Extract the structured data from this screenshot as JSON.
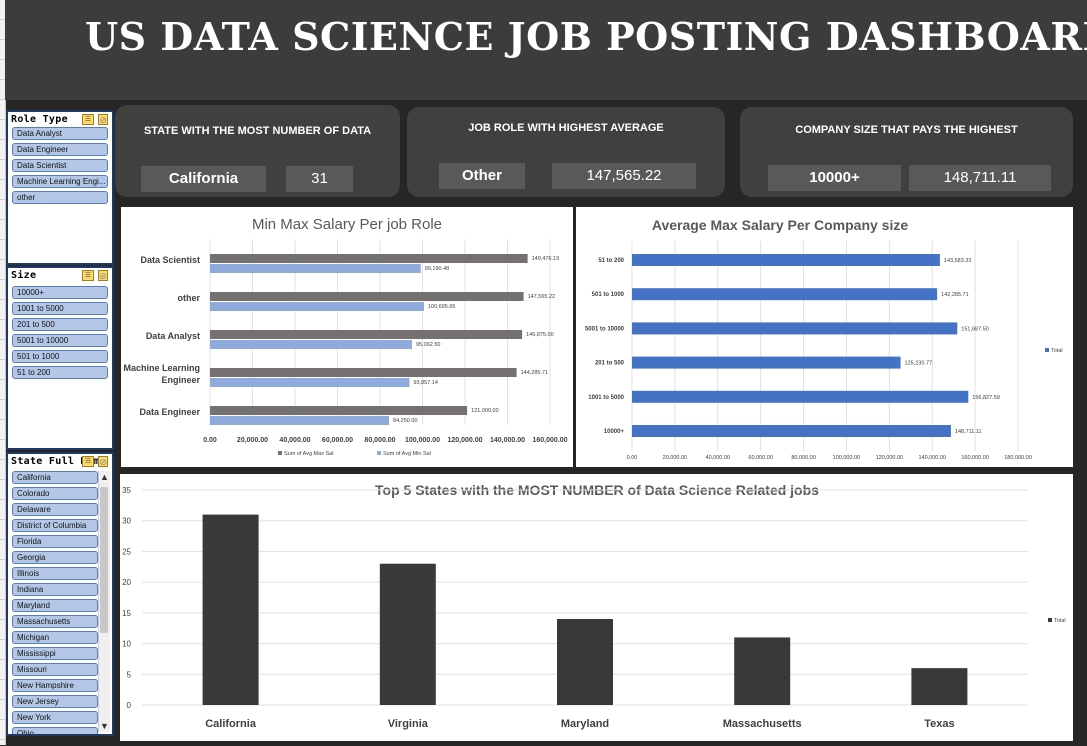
{
  "header": {
    "title": "US DATA SCIENCE JOB POSTING DASHBOARD"
  },
  "slicers": {
    "role": {
      "title": "Role Type",
      "items": [
        "Data Analyst",
        "Data Engineer",
        "Data Scientist",
        "Machine Learning Engi...",
        "other"
      ]
    },
    "size": {
      "title": "Size",
      "items": [
        "10000+",
        "1001 to 5000",
        "201 to 500",
        "5001 to 10000",
        "501 to 1000",
        "51 to 200"
      ]
    },
    "state": {
      "title": "State Full Name",
      "items": [
        "California",
        "Colorado",
        "Delaware",
        "District of Columbia",
        "Florida",
        "Georgia",
        "Illinois",
        "Indiana",
        "Maryland",
        "Massachusetts",
        "Michigan",
        "Mississippi",
        "Missouri",
        "New Hampshire",
        "New Jersey",
        "New York",
        "Ohio"
      ]
    }
  },
  "cards": {
    "state": {
      "title": "STATE WITH THE MOST NUMBER OF DATA",
      "value": "California",
      "count": "31"
    },
    "role": {
      "title": "JOB ROLE WITH HIGHEST AVERAGE",
      "value": "Other",
      "amount": "147,565.22"
    },
    "company": {
      "title": "COMPANY SIZE THAT PAYS THE HIGHEST",
      "value": "10000+",
      "amount": "148,711.11"
    }
  },
  "colors": {
    "dark_bar": "#767171",
    "light_bar": "#8faadc",
    "blue_bar": "#4472c4",
    "black_bar": "#3a3838"
  },
  "chart_data": [
    {
      "type": "bar",
      "orientation": "horizontal",
      "title": "Min Max Salary Per job Role",
      "categories": [
        "Data Scientist",
        "other",
        "Data Analyst",
        "Machine Learning Engineer",
        "Data Engineer"
      ],
      "category_lines": [
        [
          "Data Scientist"
        ],
        [
          "other"
        ],
        [
          "Data Analyst"
        ],
        [
          "Machine Learning",
          "Engineer"
        ],
        [
          "Data Engineer"
        ]
      ],
      "series": [
        {
          "name": "Sum of Avg Max Sal",
          "values": [
            149476.19,
            147565.22,
            146875.0,
            144285.71,
            121000.0
          ],
          "labels": [
            "149,476.19",
            "147,565.22",
            "146,875.00",
            "144,285.71",
            "121,000.00"
          ]
        },
        {
          "name": "Sum of Avg Min Sal",
          "values": [
            99190.48,
            100695.65,
            95062.5,
            93857.14,
            84250.0
          ],
          "labels": [
            "99,190.48",
            "100,695.65",
            "95,062.50",
            "93,857.14",
            "84,250.00"
          ]
        }
      ],
      "xlim": [
        0,
        160000
      ],
      "xticks": [
        "0.00",
        "20,000.00",
        "40,000.00",
        "60,000.00",
        "80,000.00",
        "100,000.00",
        "120,000.00",
        "140,000.00",
        "160,000.00"
      ],
      "legend": "bottom"
    },
    {
      "type": "bar",
      "orientation": "horizontal",
      "title": "Average Max Salary Per Company size",
      "categories": [
        "51 to 200",
        "501 to 1000",
        "5001 to 10000",
        "201 to 500",
        "1001 to 5000",
        "10000+"
      ],
      "series": [
        {
          "name": "Total",
          "values": [
            143583.33,
            142285.71,
            151687.5,
            125230.77,
            156827.59,
            148711.11
          ],
          "labels": [
            "143,583.33",
            "142,285.71",
            "151,687.50",
            "125,230.77",
            "156,827.59",
            "148,711.11"
          ]
        }
      ],
      "xlim": [
        0,
        180000
      ],
      "xticks": [
        "0.00",
        "20,000.00",
        "40,000.00",
        "60,000.00",
        "80,000.00",
        "100,000.00",
        "120,000.00",
        "140,000.00",
        "160,000.00",
        "180,000.00"
      ],
      "legend": "right"
    },
    {
      "type": "bar",
      "orientation": "vertical",
      "title": "Top 5 States with the MOST NUMBER of Data Science Related jobs",
      "categories": [
        "California",
        "Virginia",
        "Maryland",
        "Massachusetts",
        "Texas"
      ],
      "series": [
        {
          "name": "Total",
          "values": [
            31,
            23,
            14,
            11,
            6
          ]
        }
      ],
      "ylim": [
        0,
        35
      ],
      "yticks": [
        "0",
        "5",
        "10",
        "15",
        "20",
        "25",
        "30",
        "35"
      ],
      "grid": true,
      "legend": "right"
    }
  ]
}
